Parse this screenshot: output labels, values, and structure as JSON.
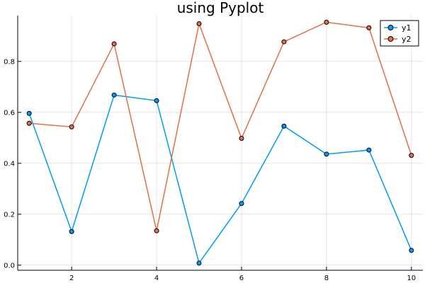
{
  "chart_data": {
    "type": "line",
    "title": "using Pyplot",
    "xlabel": "",
    "ylabel": "",
    "x": [
      1,
      2,
      3,
      4,
      5,
      6,
      7,
      8,
      9,
      10
    ],
    "xlim": [
      0.73,
      10.27
    ],
    "ylim": [
      -0.02,
      0.98
    ],
    "xticks": [
      2,
      4,
      6,
      8,
      10
    ],
    "yticks": [
      0.0,
      0.2,
      0.4,
      0.6,
      0.8
    ],
    "xtick_labels": [
      "2",
      "4",
      "6",
      "8",
      "10"
    ],
    "ytick_labels": [
      "0.0",
      "0.2",
      "0.4",
      "0.6",
      "0.8"
    ],
    "grid": true,
    "legend_position": "top-right",
    "series": [
      {
        "name": "y1",
        "color": "#009AFA",
        "marker": "circle",
        "values": [
          0.596,
          0.132,
          0.668,
          0.646,
          0.008,
          0.242,
          0.546,
          0.436,
          0.452,
          0.058
        ]
      },
      {
        "name": "y2",
        "color": "#E36F47",
        "marker": "circle",
        "values": [
          0.557,
          0.543,
          0.869,
          0.135,
          0.948,
          0.498,
          0.877,
          0.954,
          0.932,
          0.431
        ]
      }
    ]
  }
}
